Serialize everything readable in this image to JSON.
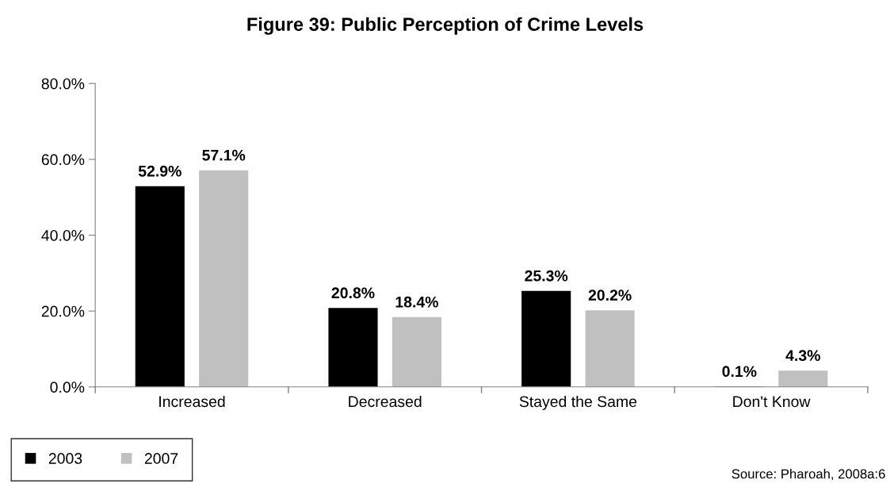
{
  "chart_data": {
    "type": "bar",
    "title": "Figure 39: Public Perception of Crime Levels",
    "categories": [
      "Increased",
      "Decreased",
      "Stayed the Same",
      "Don't Know"
    ],
    "series": [
      {
        "name": "2003",
        "color": "#000000",
        "values": [
          52.9,
          20.8,
          25.3,
          0.1
        ],
        "value_labels": [
          "52.9%",
          "20.8%",
          "25.3%",
          "0.1%"
        ]
      },
      {
        "name": "2007",
        "color": "#c0c0c0",
        "values": [
          57.1,
          18.4,
          20.2,
          4.3
        ],
        "value_labels": [
          "57.1%",
          "18.4%",
          "20.2%",
          "4.3%"
        ]
      }
    ],
    "ylim": [
      0,
      80
    ],
    "yticks": [
      {
        "value": 0,
        "label": "0.0%"
      },
      {
        "value": 20,
        "label": "20.0%"
      },
      {
        "value": 40,
        "label": "40.0%"
      },
      {
        "value": 60,
        "label": "60.0%"
      },
      {
        "value": 80,
        "label": "80.0%"
      }
    ],
    "grid": false,
    "legend": "bottom left",
    "annotations": [
      "Source: Pharoah, 2008a:6"
    ]
  }
}
